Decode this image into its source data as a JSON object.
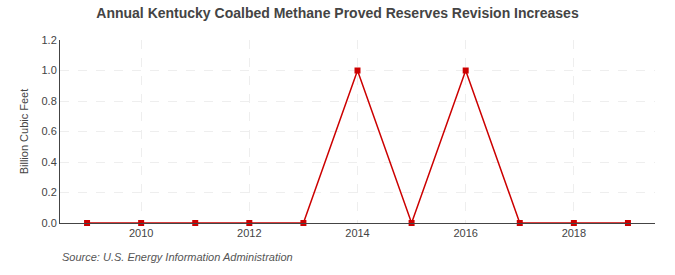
{
  "chart_data": {
    "type": "line",
    "title": "Annual Kentucky Coalbed Methane Proved Reserves Revision Increases",
    "y_label": "Billion Cubic Feet",
    "annotations": [
      "Source: U.S. Energy Information Administration"
    ],
    "x": [
      2009,
      2010,
      2011,
      2012,
      2013,
      2014,
      2015,
      2016,
      2017,
      2018,
      2019
    ],
    "values": [
      0.0,
      0.0,
      0.0,
      0.0,
      0.0,
      1.0,
      0.0,
      1.0,
      0.0,
      0.0,
      0.0
    ],
    "color": "#CC0000",
    "marker": "square",
    "line_style": "solid",
    "xlim": [
      2008.5,
      2019.5
    ],
    "xticks": [
      2010,
      2012,
      2014,
      2016,
      2018
    ],
    "ylim": [
      0.0,
      1.2
    ],
    "yticks": [
      {
        "value": 0.0,
        "label": "0.0"
      },
      0.2,
      0.4,
      0.6,
      0.8,
      {
        "value": 1.0,
        "label": "1.0"
      },
      1.2
    ],
    "grid": true
  }
}
